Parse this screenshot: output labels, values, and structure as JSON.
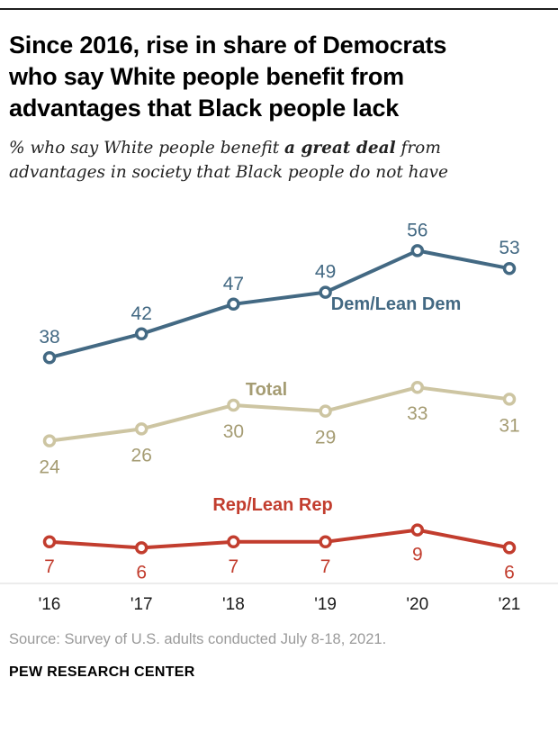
{
  "header": {
    "title_lines": [
      "Since 2016, rise in share of Democrats",
      "who say White people benefit from",
      "advantages that Black people lack"
    ],
    "subtitle": {
      "line1_prefix": "% who say White people benefit ",
      "line1_bold": "a great deal",
      "line1_suffix": " from",
      "line2": "advantages in society that Black people do not have"
    }
  },
  "chart_data": {
    "type": "line",
    "title": "Since 2016, rise in share of Democrats who say White people benefit from advantages that Black people lack",
    "subtitle": "% who say White people benefit a great deal from advantages in society that Black people do not have",
    "x_ticks": [
      "'16",
      "'17",
      "'18",
      "'19",
      "'20",
      "'21"
    ],
    "ylim": [
      0,
      60
    ],
    "grid": false,
    "legend": "inline-series-labels",
    "series": [
      {
        "name": "Dem/Lean Dem",
        "color": "#436983",
        "label_color": "#436983",
        "values": [
          38,
          42,
          47,
          49,
          56,
          53
        ]
      },
      {
        "name": "Total",
        "color": "#cdc5a2",
        "label_color": "#a59c73",
        "values": [
          24,
          26,
          30,
          29,
          33,
          31
        ]
      },
      {
        "name": "Rep/Lean Rep",
        "color": "#c23d2e",
        "label_color": "#c23d2e",
        "values": [
          7,
          6,
          7,
          7,
          9,
          6
        ]
      }
    ],
    "axis_color": "#d9d9d9",
    "tick_label_color": "#1a1a1a"
  },
  "footer": {
    "source": "Source: Survey of U.S. adults conducted July 8-18, 2021.",
    "brand": "PEW RESEARCH CENTER"
  }
}
